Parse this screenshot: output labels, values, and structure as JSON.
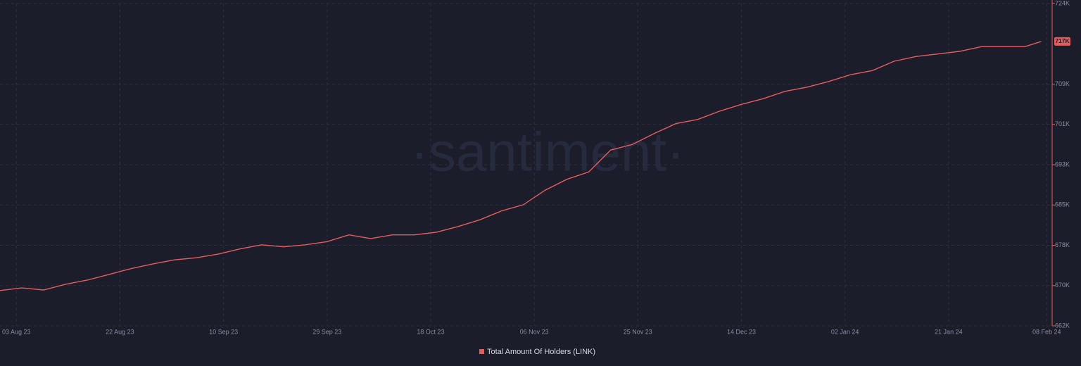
{
  "chart_data": {
    "type": "line",
    "watermark": "·santiment·",
    "x": [
      "2023-07-31",
      "2023-08-04",
      "2023-08-08",
      "2023-08-12",
      "2023-08-16",
      "2023-08-20",
      "2023-08-24",
      "2023-08-28",
      "2023-09-01",
      "2023-09-05",
      "2023-09-09",
      "2023-09-13",
      "2023-09-17",
      "2023-09-21",
      "2023-09-25",
      "2023-09-29",
      "2023-10-03",
      "2023-10-07",
      "2023-10-11",
      "2023-10-15",
      "2023-10-19",
      "2023-10-23",
      "2023-10-27",
      "2023-10-31",
      "2023-11-04",
      "2023-11-08",
      "2023-11-12",
      "2023-11-16",
      "2023-11-20",
      "2023-11-24",
      "2023-11-28",
      "2023-12-02",
      "2023-12-06",
      "2023-12-10",
      "2023-12-14",
      "2023-12-18",
      "2023-12-22",
      "2023-12-26",
      "2023-12-30",
      "2024-01-03",
      "2024-01-07",
      "2024-01-11",
      "2024-01-15",
      "2024-01-19",
      "2024-01-23",
      "2024-01-27",
      "2024-01-31",
      "2024-02-04",
      "2024-02-07"
    ],
    "series": [
      {
        "name": "Total Amount Of Holders (LINK)",
        "color": "#e35d5d",
        "values": [
          668800,
          669300,
          668900,
          670000,
          670800,
          671900,
          673000,
          673900,
          674700,
          675100,
          675800,
          676800,
          677600,
          677200,
          677600,
          678200,
          679500,
          678800,
          679500,
          679500,
          680000,
          681100,
          682400,
          684100,
          685300,
          688100,
          690200,
          691600,
          695800,
          696900,
          699000,
          700900,
          701700,
          703300,
          704600,
          705700,
          707100,
          707900,
          709000,
          710300,
          711100,
          712900,
          713800,
          714300,
          714800,
          715700,
          715700,
          715700,
          716700
        ],
        "value_labels": [
          null,
          null,
          null,
          null,
          null,
          null,
          null,
          null,
          null,
          null,
          null,
          null,
          null,
          null,
          null,
          null,
          null,
          null,
          null,
          null,
          null,
          null,
          null,
          null,
          null,
          null,
          null,
          null,
          null,
          null,
          null,
          null,
          null,
          null,
          null,
          null,
          null,
          null,
          null,
          null,
          null,
          null,
          null,
          null,
          null,
          null,
          null,
          null,
          "717K"
        ]
      }
    ],
    "xlim": [
      "2023-07-31",
      "2024-02-09"
    ],
    "xticks": [
      {
        "value": "2023-08-03",
        "label": "03 Aug 23"
      },
      {
        "value": "2023-08-22",
        "label": "22 Aug 23"
      },
      {
        "value": "2023-09-10",
        "label": "10 Sep 23"
      },
      {
        "value": "2023-09-29",
        "label": "29 Sep 23"
      },
      {
        "value": "2023-10-18",
        "label": "18 Oct 23"
      },
      {
        "value": "2023-11-06",
        "label": "06 Nov 23"
      },
      {
        "value": "2023-11-25",
        "label": "25 Nov 23"
      },
      {
        "value": "2023-12-14",
        "label": "14 Dec 23"
      },
      {
        "value": "2024-01-02",
        "label": "02 Jan 24"
      },
      {
        "value": "2024-01-21",
        "label": "21 Jan 24"
      },
      {
        "value": "2024-02-08",
        "label": "08 Feb 24"
      }
    ],
    "ylim": [
      662000,
      724000
    ],
    "yticks": [
      {
        "value": 662000,
        "label": "662K"
      },
      {
        "value": 669750,
        "label": "670K"
      },
      {
        "value": 677500,
        "label": "678K"
      },
      {
        "value": 685250,
        "label": "685K"
      },
      {
        "value": 693000,
        "label": "693K"
      },
      {
        "value": 700750,
        "label": "701K"
      },
      {
        "value": 708500,
        "label": "709K"
      },
      {
        "value": 724000,
        "label": "724K"
      }
    ],
    "grid": true,
    "legend": "bottom"
  }
}
